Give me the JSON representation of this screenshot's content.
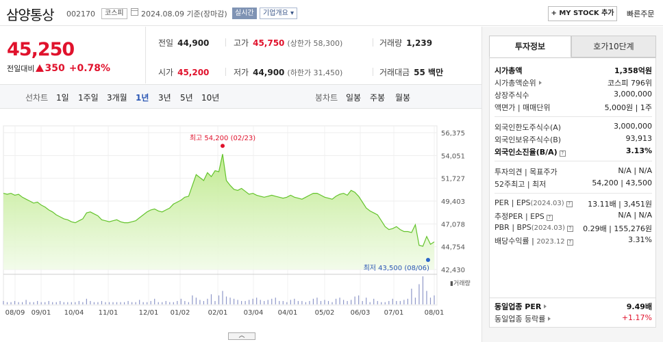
{
  "header": {
    "title": "삼양통상",
    "code": "002170",
    "market": "코스피",
    "date": "2024.08.09 기준(장마감)",
    "realtime": "실시간",
    "corp_info": "기업개요 ▾",
    "mystock_button": "+ MY STOCK 추가",
    "quick_order": "빠른주문"
  },
  "price": {
    "current": "45,250",
    "change_label": "전일대비",
    "change": "350",
    "change_pct": "+0.78%",
    "up_color": "#e0122c"
  },
  "stats": {
    "prev": {
      "label": "전일",
      "value": "44,900"
    },
    "high": {
      "label": "고가",
      "value": "45,750",
      "sub": "(상한가 58,300)"
    },
    "volume": {
      "label": "거래량",
      "value": "1,239"
    },
    "open": {
      "label": "시가",
      "value": "45,200"
    },
    "low": {
      "label": "저가",
      "value": "44,900",
      "sub": "(하한가 31,450)"
    },
    "amount": {
      "label": "거래대금",
      "value": "55 백만"
    }
  },
  "chart_tabs": {
    "line_label": "선차트",
    "periods": [
      "1일",
      "1주일",
      "3개월",
      "1년",
      "3년",
      "5년",
      "10년"
    ],
    "active": "1년",
    "candle_label": "봉차트",
    "candles": [
      "일봉",
      "주봉",
      "월봉"
    ]
  },
  "chart_data": {
    "type": "area",
    "y_ticks": [
      "56,375",
      "54,051",
      "51,727",
      "49,403",
      "47,078",
      "44,754",
      "42,430"
    ],
    "ylim": [
      42430,
      56375
    ],
    "x_ticks": [
      "08/09",
      "09/01",
      "10/04",
      "11/01",
      "12/01",
      "01/02",
      "02/01",
      "03/04",
      "04/01",
      "05/02",
      "06/03",
      "07/01",
      "08/01"
    ],
    "high_label": "최고 54,200 (02/23)",
    "low_label": "최저 43,500 (08/06)",
    "volume_label": "거래량",
    "series": [
      {
        "values": [
          50200,
          50100,
          50200,
          50000,
          50100,
          49800,
          49600,
          49400,
          49200,
          49300,
          49000,
          48800,
          48500,
          48300,
          48000,
          47800,
          47600,
          47500,
          47300,
          47200,
          47400,
          47600,
          48200,
          48300,
          48100,
          47900,
          47500,
          47400,
          47300,
          47400,
          47500,
          47300,
          47200,
          47200,
          47300,
          47400,
          47700,
          48000,
          48300,
          48500,
          48600,
          48400,
          48300,
          48500,
          48700,
          49100,
          49300,
          49500,
          49800,
          49900,
          51000,
          52100,
          51800,
          51500,
          52300,
          51900,
          52500,
          52400,
          54200,
          51500,
          51000,
          50600,
          50500,
          50700,
          50400,
          50100,
          50200,
          50000,
          49900,
          49800,
          49900,
          50000,
          49900,
          49800,
          49700,
          49800,
          50000,
          49800,
          49700,
          49600,
          49800,
          50000,
          50200,
          50200,
          50000,
          49800,
          49700,
          49600,
          49900,
          50100,
          50200,
          50000,
          50500,
          50300,
          49900,
          49300,
          48700,
          48400,
          48200,
          48000,
          47400,
          46800,
          46500,
          46600,
          46800,
          46500,
          46300,
          46300,
          46200,
          47000,
          44900,
          44800,
          45800,
          45000,
          45250
        ]
      }
    ],
    "volume": [
      3,
      2,
      2,
      3,
      2,
      2,
      4,
      2,
      2,
      3,
      2,
      2,
      3,
      2,
      2,
      3,
      2,
      2,
      2,
      2,
      3,
      2,
      5,
      3,
      2,
      2,
      3,
      2,
      2,
      2,
      2,
      2,
      2,
      3,
      2,
      2,
      4,
      2,
      2,
      3,
      5,
      2,
      2,
      3,
      2,
      2,
      3,
      5,
      3,
      2,
      8,
      6,
      4,
      3,
      5,
      9,
      3,
      8,
      12,
      7,
      6,
      5,
      4,
      3,
      3,
      4,
      5,
      6,
      4,
      3,
      4,
      5,
      6,
      3,
      3,
      2,
      4,
      5,
      3,
      3,
      2,
      3,
      5,
      6,
      3,
      4,
      3,
      2,
      5,
      6,
      4,
      3,
      4,
      7,
      8,
      3,
      6,
      2,
      5,
      3,
      2,
      2,
      3,
      5,
      3,
      3,
      4,
      5,
      14,
      6,
      18,
      25,
      12,
      6,
      8
    ],
    "line_color": "#63c32b",
    "fill_color": "#bde98a",
    "high_marker_color": "#e0122c",
    "low_marker_color": "#2b66c8"
  },
  "grip": "︿",
  "panel": {
    "tabs": [
      "투자정보",
      "호가10단계"
    ],
    "rows1": [
      {
        "k": "시가총액",
        "v": "1,358억원",
        "bold": true
      },
      {
        "k": "시가총액순위",
        "v": "코스피 796위",
        "arrow": true
      },
      {
        "k": "상장주식수",
        "v": "3,000,000"
      },
      {
        "k": "액면가 | 매매단위",
        "v": "5,000원 | 1주"
      }
    ],
    "rows2": [
      {
        "k": "외국인한도주식수(A)",
        "v": "3,000,000"
      },
      {
        "k": "외국인보유주식수(B)",
        "v": "93,913"
      },
      {
        "k": "외국인소진율(B/A)",
        "v": "3.13%",
        "bold": true,
        "q": true
      }
    ],
    "rows3": [
      {
        "k": "투자의견 | 목표주가",
        "v": "N/A | N/A"
      },
      {
        "k": "52주최고 | 최저",
        "v": "54,200 | 43,500"
      }
    ],
    "rows4": [
      {
        "k": "PER | EPS",
        "k_small": "(2024.03)",
        "v": "13.11배 | 3,451원",
        "q": true
      },
      {
        "k": "추정PER | EPS",
        "v": "N/A | N/A",
        "q": true
      },
      {
        "k": "PBR | BPS",
        "k_small": "(2024.03)",
        "v": "0.29배 | 155,276원",
        "q": true
      },
      {
        "k": "배당수익률 | ",
        "k_small": "2023.12",
        "v": "3.31%",
        "q": true
      }
    ],
    "rows5": [
      {
        "k": "동일업종 PER",
        "v": "9.49배",
        "bold": true,
        "arrow": true
      },
      {
        "k": "동일업종 등락률",
        "v": "+1.17%",
        "red": true,
        "arrow": true
      }
    ]
  }
}
